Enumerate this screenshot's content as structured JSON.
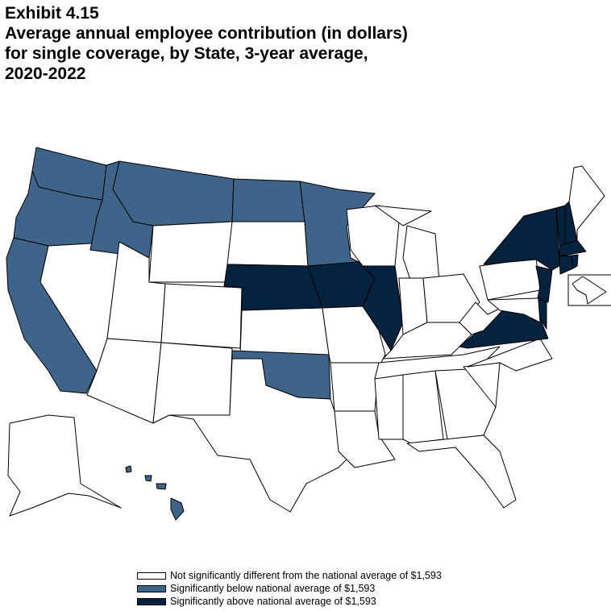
{
  "title": {
    "exhibit": "Exhibit 4.15",
    "line1": "Average annual employee contribution (in dollars)",
    "line2": "for single coverage, by State, 3-year average,",
    "line3": "2020-2022"
  },
  "colors": {
    "not_different": "#ffffff",
    "below": "#3e6589",
    "above": "#05233f"
  },
  "legend": [
    {
      "key": "not_different",
      "label": "Not significantly different from the national average of $1,593"
    },
    {
      "key": "below",
      "label": "Significantly below national average of $1,593"
    },
    {
      "key": "above",
      "label": "Significantly above national average of $1,593"
    }
  ],
  "national_average": "$1,593",
  "states": {
    "WA": "below",
    "OR": "below",
    "CA": "below",
    "ID": "below",
    "MT": "below",
    "ND": "below",
    "MN": "below",
    "OK": "below",
    "HI": "below",
    "NE": "above",
    "IA": "above",
    "IL": "above",
    "VA": "above",
    "NY": "above",
    "NJ": "above",
    "DE": "above",
    "VT": "above",
    "NH": "above",
    "MA": "above",
    "CT": "above",
    "RI": "above",
    "NV": "not_different",
    "UT": "not_different",
    "AZ": "not_different",
    "WY": "not_different",
    "CO": "not_different",
    "NM": "not_different",
    "SD": "not_different",
    "KS": "not_different",
    "TX": "not_different",
    "MO": "not_different",
    "AR": "not_different",
    "LA": "not_different",
    "WI": "not_different",
    "MI": "not_different",
    "IN": "not_different",
    "OH": "not_different",
    "KY": "not_different",
    "TN": "not_different",
    "MS": "not_different",
    "AL": "not_different",
    "GA": "not_different",
    "FL": "not_different",
    "SC": "not_different",
    "NC": "not_different",
    "WV": "not_different",
    "PA": "not_different",
    "MD": "not_different",
    "ME": "not_different",
    "AK": "not_different",
    "DC": "not_different"
  }
}
